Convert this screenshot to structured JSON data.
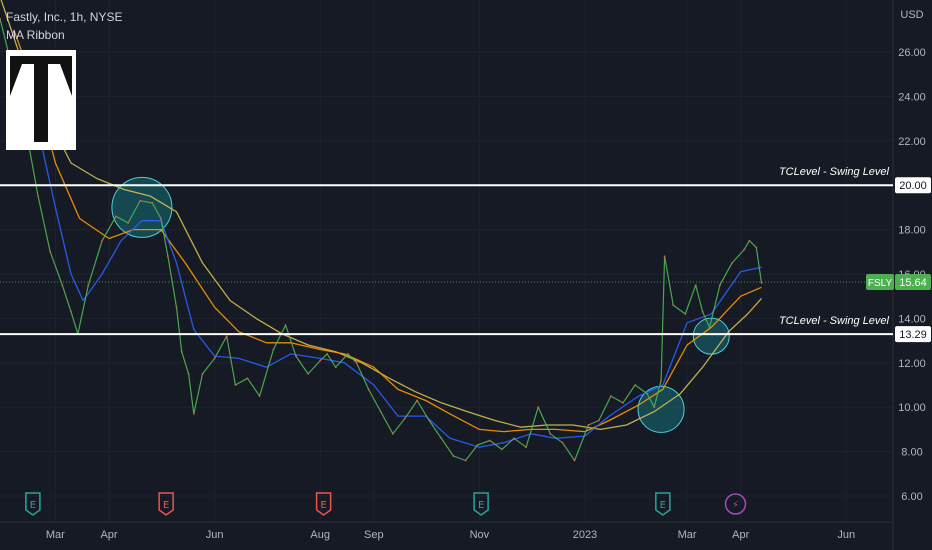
{
  "header": {
    "symbol_line": "Fastly, Inc., 1h, NYSE",
    "indicator": "MA Ribbon"
  },
  "axis": {
    "currency": "USD"
  },
  "price_tag": {
    "ticker": "FSLY",
    "value": "15.64",
    "color": "#4caf50"
  },
  "levels": [
    {
      "label": "TCLevel - Swing Level",
      "tag": "20.00",
      "price": 20.0
    },
    {
      "label": "TCLevel - Swing Level",
      "tag": "13.29",
      "price": 13.29
    }
  ],
  "event_markers": [
    {
      "type": "earnings",
      "date": "2022-02-16",
      "glyph": "E",
      "color": "#26a69a"
    },
    {
      "type": "earnings",
      "date": "2022-05-04",
      "glyph": "E",
      "color": "#ef5350"
    },
    {
      "type": "earnings",
      "date": "2022-08-03",
      "glyph": "E",
      "color": "#ef5350"
    },
    {
      "type": "earnings",
      "date": "2022-11-02",
      "glyph": "E",
      "color": "#26a69a"
    },
    {
      "type": "earnings",
      "date": "2023-02-15",
      "glyph": "E",
      "color": "#26a69a"
    },
    {
      "type": "dividend-split",
      "date": "2023-03-29",
      "glyph": "⚡",
      "color": "#ab47bc"
    }
  ],
  "logo_icon": "tc-logo-icon",
  "chart_data": {
    "type": "line",
    "title": "Fastly, Inc., 1h, NYSE",
    "xlabel": "",
    "ylabel": "",
    "ylim": [
      5.7,
      28.2
    ],
    "y_ticks": [
      "6.00",
      "8.00",
      "10.00",
      "12.00",
      "14.00",
      "16.00",
      "18.00",
      "20.00",
      "22.00",
      "24.00",
      "26.00"
    ],
    "x_ticks": [
      {
        "label": "Mar",
        "date": "2022-03-01"
      },
      {
        "label": "Apr",
        "date": "2022-04-01"
      },
      {
        "label": "Jun",
        "date": "2022-06-01"
      },
      {
        "label": "Aug",
        "date": "2022-08-01"
      },
      {
        "label": "Sep",
        "date": "2022-09-01"
      },
      {
        "label": "Nov",
        "date": "2022-11-01"
      },
      {
        "label": "2023",
        "date": "2023-01-01"
      },
      {
        "label": "Mar",
        "date": "2023-03-01"
      },
      {
        "label": "Apr",
        "date": "2023-04-01"
      },
      {
        "label": "Jun",
        "date": "2023-06-01"
      }
    ],
    "x_range": [
      "2022-01-28",
      "2023-06-28"
    ],
    "series": [
      {
        "color": "#4caf50",
        "points": [
          [
            "2022-01-28",
            27.5
          ],
          [
            "2022-02-05",
            25.0
          ],
          [
            "2022-02-12",
            22.5
          ],
          [
            "2022-02-19",
            19.5
          ],
          [
            "2022-02-26",
            17.0
          ],
          [
            "2022-03-05",
            15.5
          ],
          [
            "2022-03-10",
            14.3
          ],
          [
            "2022-03-14",
            13.3
          ],
          [
            "2022-03-20",
            15.5
          ],
          [
            "2022-03-28",
            17.5
          ],
          [
            "2022-04-05",
            18.6
          ],
          [
            "2022-04-12",
            18.3
          ],
          [
            "2022-04-19",
            19.3
          ],
          [
            "2022-04-26",
            19.2
          ],
          [
            "2022-05-01",
            18.5
          ],
          [
            "2022-05-05",
            16.8
          ],
          [
            "2022-05-10",
            14.5
          ],
          [
            "2022-05-13",
            12.5
          ],
          [
            "2022-05-17",
            11.5
          ],
          [
            "2022-05-20",
            9.7
          ],
          [
            "2022-05-25",
            11.5
          ],
          [
            "2022-06-01",
            12.2
          ],
          [
            "2022-06-08",
            13.2
          ],
          [
            "2022-06-13",
            11.0
          ],
          [
            "2022-06-20",
            11.3
          ],
          [
            "2022-06-27",
            10.5
          ],
          [
            "2022-07-05",
            12.6
          ],
          [
            "2022-07-12",
            13.7
          ],
          [
            "2022-07-18",
            12.3
          ],
          [
            "2022-07-25",
            11.5
          ],
          [
            "2022-08-01",
            12.1
          ],
          [
            "2022-08-05",
            12.4
          ],
          [
            "2022-08-10",
            11.8
          ],
          [
            "2022-08-17",
            12.4
          ],
          [
            "2022-08-22",
            12.0
          ],
          [
            "2022-08-29",
            10.8
          ],
          [
            "2022-09-05",
            9.8
          ],
          [
            "2022-09-12",
            8.8
          ],
          [
            "2022-09-19",
            9.5
          ],
          [
            "2022-09-26",
            10.3
          ],
          [
            "2022-10-03",
            9.4
          ],
          [
            "2022-10-10",
            8.6
          ],
          [
            "2022-10-17",
            7.8
          ],
          [
            "2022-10-24",
            7.6
          ],
          [
            "2022-10-31",
            8.3
          ],
          [
            "2022-11-07",
            8.5
          ],
          [
            "2022-11-14",
            8.1
          ],
          [
            "2022-11-21",
            8.6
          ],
          [
            "2022-11-28",
            8.2
          ],
          [
            "2022-12-05",
            10.0
          ],
          [
            "2022-12-12",
            8.8
          ],
          [
            "2022-12-19",
            8.4
          ],
          [
            "2022-12-26",
            7.6
          ],
          [
            "2023-01-03",
            9.2
          ],
          [
            "2023-01-09",
            9.4
          ],
          [
            "2023-01-16",
            10.5
          ],
          [
            "2023-01-23",
            10.2
          ],
          [
            "2023-01-30",
            11.0
          ],
          [
            "2023-02-06",
            10.6
          ],
          [
            "2023-02-10",
            10.0
          ],
          [
            "2023-02-14",
            11.2
          ],
          [
            "2023-02-16",
            16.8
          ],
          [
            "2023-02-21",
            14.6
          ],
          [
            "2023-02-28",
            14.2
          ],
          [
            "2023-03-06",
            15.5
          ],
          [
            "2023-03-10",
            14.3
          ],
          [
            "2023-03-14",
            13.6
          ],
          [
            "2023-03-20",
            15.5
          ],
          [
            "2023-03-27",
            16.5
          ],
          [
            "2023-04-03",
            17.1
          ],
          [
            "2023-04-06",
            17.5
          ],
          [
            "2023-04-10",
            17.2
          ],
          [
            "2023-04-13",
            15.6
          ]
        ]
      },
      {
        "color": "#2962ff",
        "points": [
          [
            "2022-02-05",
            26.0
          ],
          [
            "2022-02-19",
            22.5
          ],
          [
            "2022-03-01",
            19.0
          ],
          [
            "2022-03-10",
            16.0
          ],
          [
            "2022-03-17",
            14.8
          ],
          [
            "2022-03-28",
            16.0
          ],
          [
            "2022-04-08",
            17.5
          ],
          [
            "2022-04-20",
            18.4
          ],
          [
            "2022-05-01",
            18.4
          ],
          [
            "2022-05-10",
            16.5
          ],
          [
            "2022-05-20",
            13.5
          ],
          [
            "2022-06-01",
            12.3
          ],
          [
            "2022-06-15",
            12.2
          ],
          [
            "2022-07-01",
            11.8
          ],
          [
            "2022-07-15",
            12.4
          ],
          [
            "2022-08-01",
            12.2
          ],
          [
            "2022-08-15",
            12.0
          ],
          [
            "2022-09-01",
            11.0
          ],
          [
            "2022-09-15",
            9.6
          ],
          [
            "2022-10-01",
            9.6
          ],
          [
            "2022-10-15",
            8.6
          ],
          [
            "2022-11-01",
            8.2
          ],
          [
            "2022-11-15",
            8.4
          ],
          [
            "2022-12-01",
            8.8
          ],
          [
            "2022-12-15",
            8.6
          ],
          [
            "2023-01-01",
            8.7
          ],
          [
            "2023-01-15",
            9.6
          ],
          [
            "2023-02-01",
            10.5
          ],
          [
            "2023-02-15",
            11.0
          ],
          [
            "2023-03-01",
            13.8
          ],
          [
            "2023-03-15",
            14.2
          ],
          [
            "2023-04-01",
            16.1
          ],
          [
            "2023-04-13",
            16.3
          ]
        ]
      },
      {
        "color": "#ff9800",
        "points": [
          [
            "2022-02-05",
            27.0
          ],
          [
            "2022-02-19",
            24.0
          ],
          [
            "2022-03-01",
            21.0
          ],
          [
            "2022-03-15",
            18.5
          ],
          [
            "2022-04-01",
            17.6
          ],
          [
            "2022-04-15",
            18.0
          ],
          [
            "2022-05-01",
            18.0
          ],
          [
            "2022-05-15",
            16.5
          ],
          [
            "2022-06-01",
            14.5
          ],
          [
            "2022-06-15",
            13.4
          ],
          [
            "2022-07-01",
            12.9
          ],
          [
            "2022-07-15",
            12.9
          ],
          [
            "2022-08-01",
            12.6
          ],
          [
            "2022-08-15",
            12.4
          ],
          [
            "2022-09-01",
            11.8
          ],
          [
            "2022-09-15",
            10.8
          ],
          [
            "2022-10-01",
            10.3
          ],
          [
            "2022-10-15",
            9.7
          ],
          [
            "2022-11-01",
            9.0
          ],
          [
            "2022-11-15",
            8.9
          ],
          [
            "2022-12-01",
            9.0
          ],
          [
            "2022-12-15",
            9.0
          ],
          [
            "2023-01-01",
            8.9
          ],
          [
            "2023-01-15",
            9.4
          ],
          [
            "2023-02-01",
            10.1
          ],
          [
            "2023-02-15",
            10.8
          ],
          [
            "2023-03-01",
            12.8
          ],
          [
            "2023-03-15",
            13.6
          ],
          [
            "2023-04-01",
            15.0
          ],
          [
            "2023-04-13",
            15.4
          ]
        ]
      },
      {
        "color": "#d4c04e",
        "points": [
          [
            "2022-01-28",
            28.5
          ],
          [
            "2022-02-10",
            25.5
          ],
          [
            "2022-02-25",
            23.0
          ],
          [
            "2022-03-10",
            21.0
          ],
          [
            "2022-03-25",
            20.3
          ],
          [
            "2022-04-10",
            19.8
          ],
          [
            "2022-04-25",
            19.5
          ],
          [
            "2022-05-10",
            18.8
          ],
          [
            "2022-05-25",
            16.5
          ],
          [
            "2022-06-10",
            14.8
          ],
          [
            "2022-06-25",
            14.0
          ],
          [
            "2022-07-10",
            13.3
          ],
          [
            "2022-07-25",
            12.8
          ],
          [
            "2022-08-10",
            12.5
          ],
          [
            "2022-08-25",
            12.0
          ],
          [
            "2022-09-10",
            11.3
          ],
          [
            "2022-09-25",
            10.7
          ],
          [
            "2022-10-10",
            10.2
          ],
          [
            "2022-10-25",
            9.8
          ],
          [
            "2022-11-10",
            9.4
          ],
          [
            "2022-11-25",
            9.1
          ],
          [
            "2022-12-10",
            9.2
          ],
          [
            "2022-12-25",
            9.2
          ],
          [
            "2023-01-10",
            9.0
          ],
          [
            "2023-01-25",
            9.2
          ],
          [
            "2023-02-10",
            9.8
          ],
          [
            "2023-02-25",
            10.6
          ],
          [
            "2023-03-10",
            11.8
          ],
          [
            "2023-03-25",
            13.4
          ],
          [
            "2023-04-05",
            14.2
          ],
          [
            "2023-04-13",
            14.9
          ]
        ]
      }
    ],
    "horizontal_lines": [
      {
        "price": 20.0,
        "label": "TCLevel - Swing Level"
      },
      {
        "price": 13.29,
        "label": "TCLevel - Swing Level"
      }
    ],
    "last_price_line": 15.64,
    "highlight_circles": [
      {
        "date": "2022-04-20",
        "price": 19.0
      },
      {
        "date": "2023-02-14",
        "price": 9.9
      },
      {
        "date": "2023-03-15",
        "price": 13.2
      }
    ]
  }
}
